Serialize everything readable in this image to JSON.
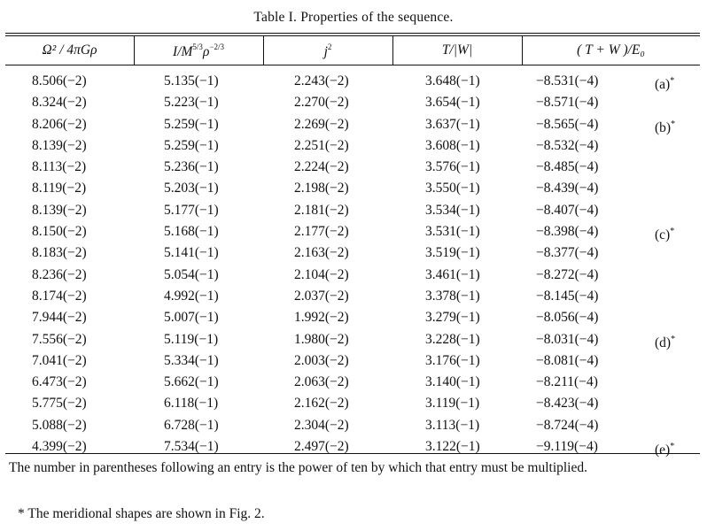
{
  "caption": "Table  I.  Properties of the sequence.",
  "headers": {
    "c1": "Ω² / 4πGρ",
    "c2_main": "I/M",
    "c2_exp1": "5/3",
    "c2_mid": "ρ",
    "c2_exp2": "−2/3",
    "c3_main": "j",
    "c3_exp": "2",
    "c4": "T/|W|",
    "c5": "( T + W )/E₀"
  },
  "rows": [
    {
      "c1": "8.506(−2)",
      "c2": "5.135(−1)",
      "c3": "2.243(−2)",
      "c4": "3.648(−1)",
      "c5": "−8.531(−4)",
      "mark": "(a)",
      "star": "*"
    },
    {
      "c1": "8.324(−2)",
      "c2": "5.223(−1)",
      "c3": "2.270(−2)",
      "c4": "3.654(−1)",
      "c5": "−8.571(−4)",
      "mark": "",
      "star": ""
    },
    {
      "c1": "8.206(−2)",
      "c2": "5.259(−1)",
      "c3": "2.269(−2)",
      "c4": "3.637(−1)",
      "c5": "−8.565(−4)",
      "mark": "(b)",
      "star": "*"
    },
    {
      "c1": "8.139(−2)",
      "c2": "5.259(−1)",
      "c3": "2.251(−2)",
      "c4": "3.608(−1)",
      "c5": "−8.532(−4)",
      "mark": "",
      "star": ""
    },
    {
      "c1": "8.113(−2)",
      "c2": "5.236(−1)",
      "c3": "2.224(−2)",
      "c4": "3.576(−1)",
      "c5": "−8.485(−4)",
      "mark": "",
      "star": ""
    },
    {
      "c1": "8.119(−2)",
      "c2": "5.203(−1)",
      "c3": "2.198(−2)",
      "c4": "3.550(−1)",
      "c5": "−8.439(−4)",
      "mark": "",
      "star": ""
    },
    {
      "c1": "8.139(−2)",
      "c2": "5.177(−1)",
      "c3": "2.181(−2)",
      "c4": "3.534(−1)",
      "c5": "−8.407(−4)",
      "mark": "",
      "star": ""
    },
    {
      "c1": "8.150(−2)",
      "c2": "5.168(−1)",
      "c3": "2.177(−2)",
      "c4": "3.531(−1)",
      "c5": "−8.398(−4)",
      "mark": "(c)",
      "star": "*"
    },
    {
      "c1": "8.183(−2)",
      "c2": "5.141(−1)",
      "c3": "2.163(−2)",
      "c4": "3.519(−1)",
      "c5": "−8.377(−4)",
      "mark": "",
      "star": ""
    },
    {
      "c1": "8.236(−2)",
      "c2": "5.054(−1)",
      "c3": "2.104(−2)",
      "c4": "3.461(−1)",
      "c5": "−8.272(−4)",
      "mark": "",
      "star": ""
    },
    {
      "c1": "8.174(−2)",
      "c2": "4.992(−1)",
      "c3": "2.037(−2)",
      "c4": "3.378(−1)",
      "c5": "−8.145(−4)",
      "mark": "",
      "star": ""
    },
    {
      "c1": "7.944(−2)",
      "c2": "5.007(−1)",
      "c3": "1.992(−2)",
      "c4": "3.279(−1)",
      "c5": "−8.056(−4)",
      "mark": "",
      "star": ""
    },
    {
      "c1": "7.556(−2)",
      "c2": "5.119(−1)",
      "c3": "1.980(−2)",
      "c4": "3.228(−1)",
      "c5": "−8.031(−4)",
      "mark": "(d)",
      "star": "*"
    },
    {
      "c1": "7.041(−2)",
      "c2": "5.334(−1)",
      "c3": "2.003(−2)",
      "c4": "3.176(−1)",
      "c5": "−8.081(−4)",
      "mark": "",
      "star": ""
    },
    {
      "c1": "6.473(−2)",
      "c2": "5.662(−1)",
      "c3": "2.063(−2)",
      "c4": "3.140(−1)",
      "c5": "−8.211(−4)",
      "mark": "",
      "star": ""
    },
    {
      "c1": "5.775(−2)",
      "c2": "6.118(−1)",
      "c3": "2.162(−2)",
      "c4": "3.119(−1)",
      "c5": "−8.423(−4)",
      "mark": "",
      "star": ""
    },
    {
      "c1": "5.088(−2)",
      "c2": "6.728(−1)",
      "c3": "2.304(−2)",
      "c4": "3.113(−1)",
      "c5": "−8.724(−4)",
      "mark": "",
      "star": ""
    },
    {
      "c1": "4.399(−2)",
      "c2": "7.534(−1)",
      "c3": "2.497(−2)",
      "c4": "3.122(−1)",
      "c5": "−9.119(−4)",
      "mark": "(e)",
      "star": "*"
    }
  ],
  "notes": {
    "power_note": "The number in parentheses following an entry is the power of ten by which that entry must be multiplied.",
    "star_note": "*  The meridional shapes are shown in Fig. 2."
  }
}
